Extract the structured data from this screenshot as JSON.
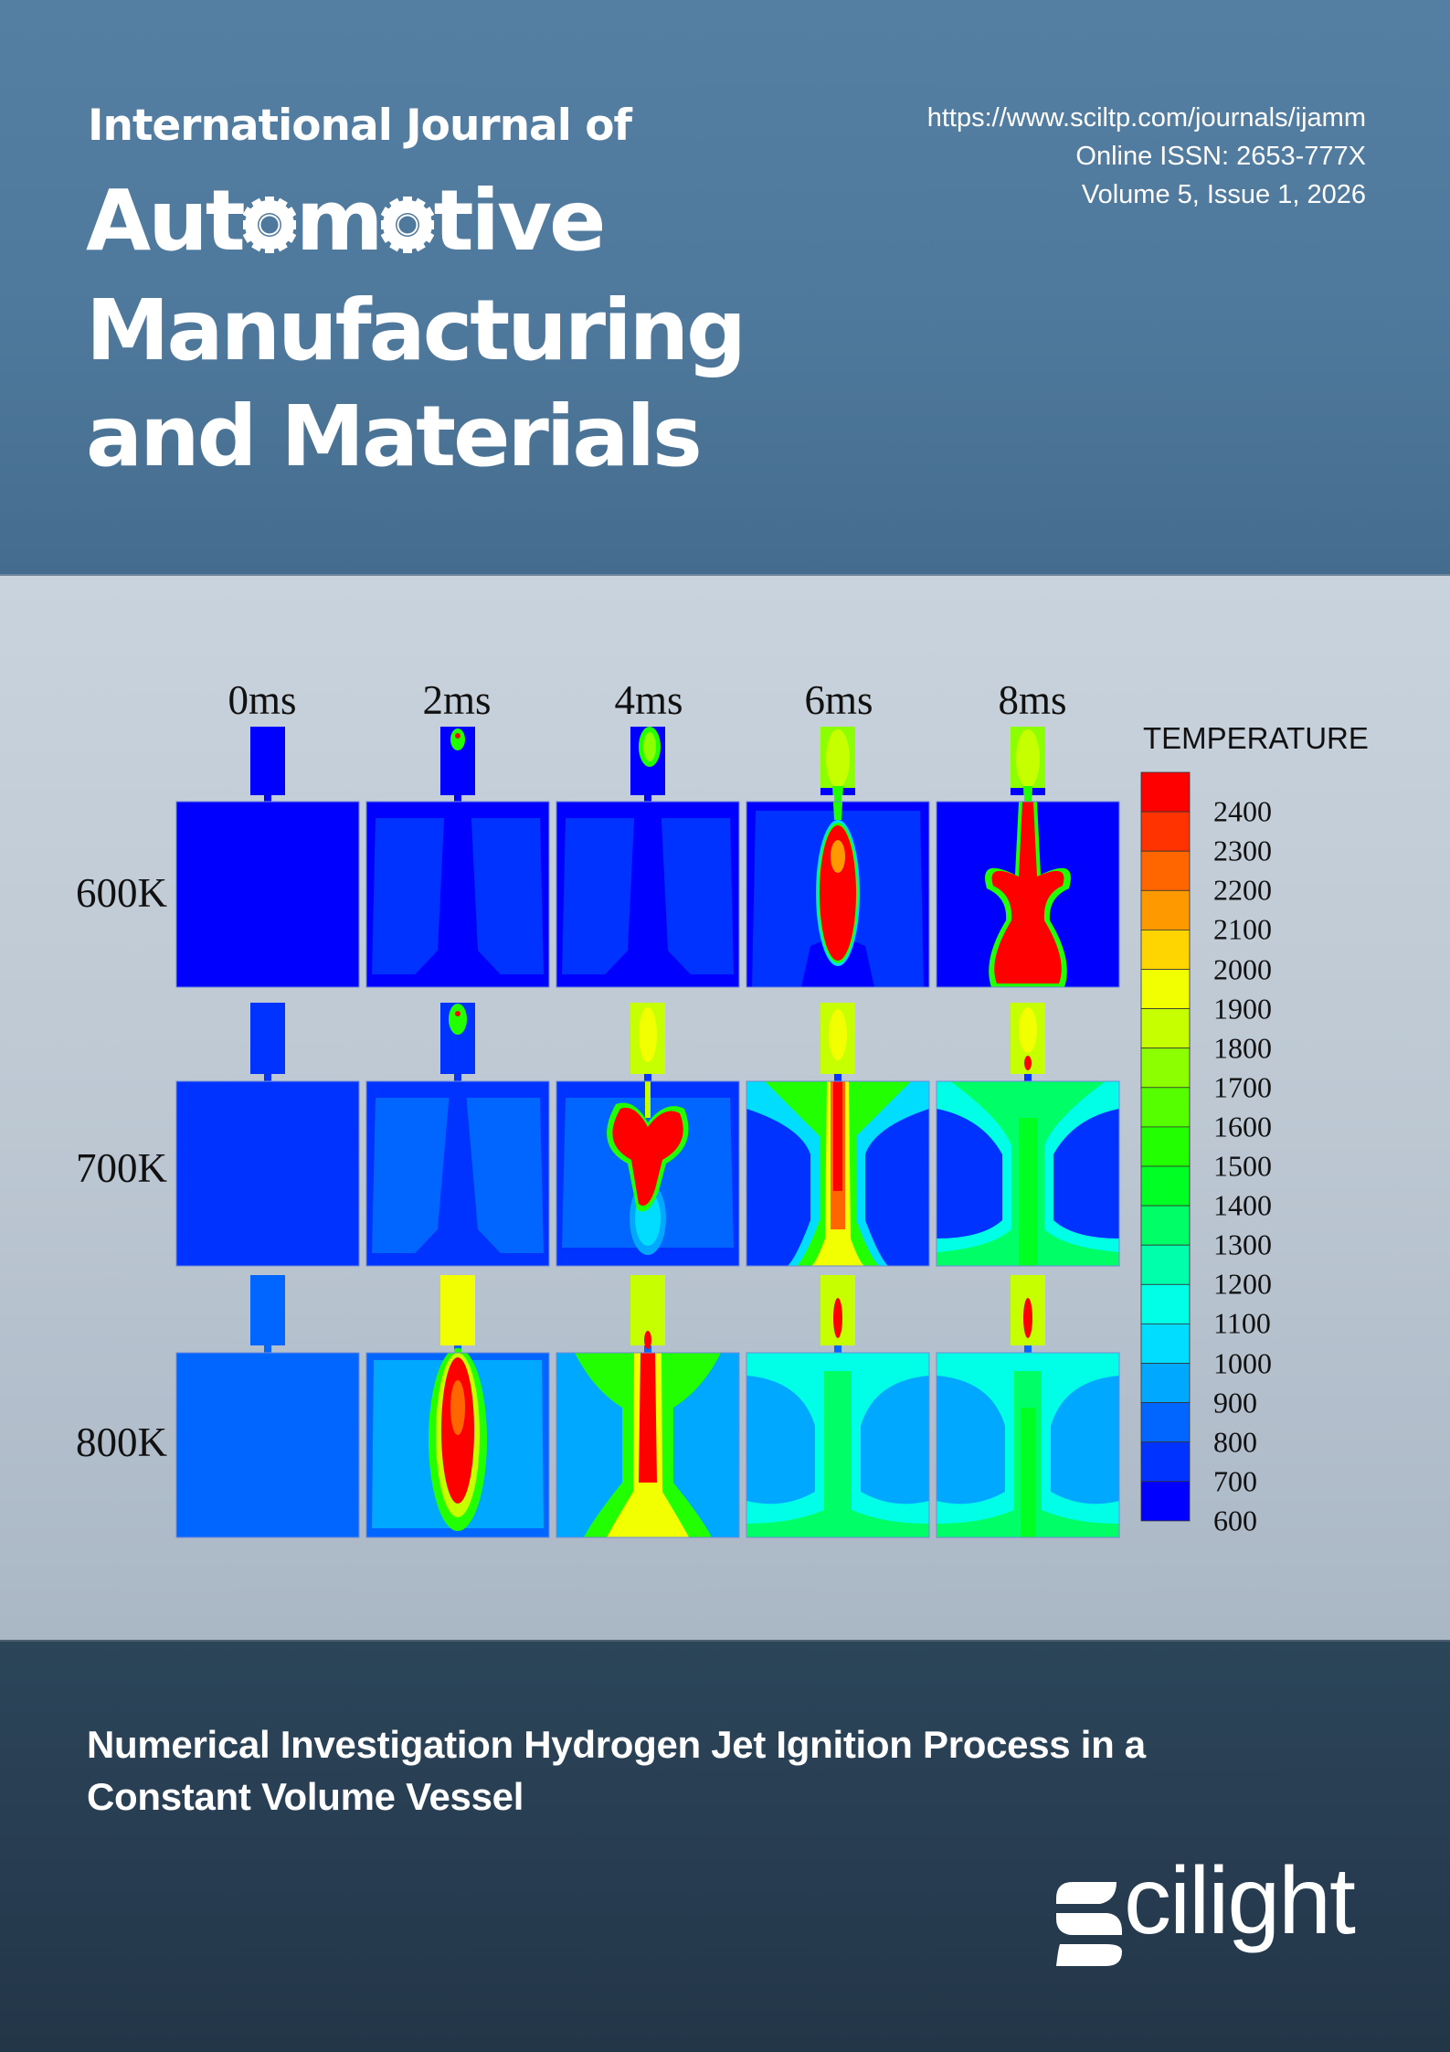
{
  "journal": {
    "prefix": "International Journal of",
    "title_lines": [
      "Automotive",
      "Manufacturing",
      "and Materials"
    ],
    "title_word1_parts": [
      "Aut",
      "o",
      "m",
      "o",
      "tive"
    ],
    "url": "https://www.sciltp.com/journals/ijamm",
    "issn": "Online ISSN: 2653-777X",
    "volume_issue": "Volume 5, Issue 1, 2026"
  },
  "colors": {
    "header_bg": "#4f799c",
    "middle_bg": "#bdc8d3",
    "footer_bg": "#283d52",
    "text_light": "#ffffff"
  },
  "figure": {
    "time_labels": [
      "0ms",
      "2ms",
      "4ms",
      "6ms",
      "8ms"
    ],
    "temperature_labels": [
      "600K",
      "700K",
      "800K"
    ],
    "colorbar": {
      "title": "TEMPERATURE",
      "ticks": [
        "2400",
        "2300",
        "2200",
        "2100",
        "2000",
        "1900",
        "1800",
        "1700",
        "1600",
        "1500",
        "1400",
        "1300",
        "1200",
        "1100",
        "1000",
        "900",
        "800",
        "700",
        "600"
      ],
      "band_colors": [
        "#ff0000",
        "#ff3300",
        "#ff6600",
        "#ff9900",
        "#ffd500",
        "#f2ff00",
        "#c6ff00",
        "#8cff00",
        "#55ff00",
        "#22ff00",
        "#00ff22",
        "#00ff66",
        "#00ffaa",
        "#00ffe6",
        "#00ddff",
        "#00a8ff",
        "#0066ff",
        "#0033ff",
        "#0000ff"
      ]
    }
  },
  "paper": {
    "title_lines": [
      "Numerical Investigation Hydrogen Jet Ignition Process in a",
      "Constant Volume Vessel"
    ]
  },
  "publisher": {
    "logo_text": "cilight",
    "logo_full": "Scilight"
  }
}
